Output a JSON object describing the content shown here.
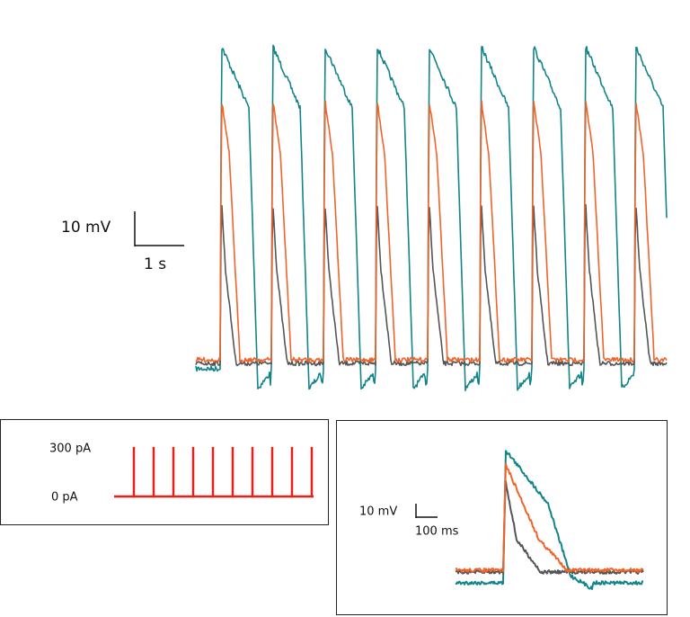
{
  "main_scale": {
    "voltage": "10 mV",
    "time": "1 s"
  },
  "stimulus": {
    "high": "300 pA",
    "low": "0 pA"
  },
  "inset_scale": {
    "voltage": "10 mV",
    "time": "100 ms"
  }
}
